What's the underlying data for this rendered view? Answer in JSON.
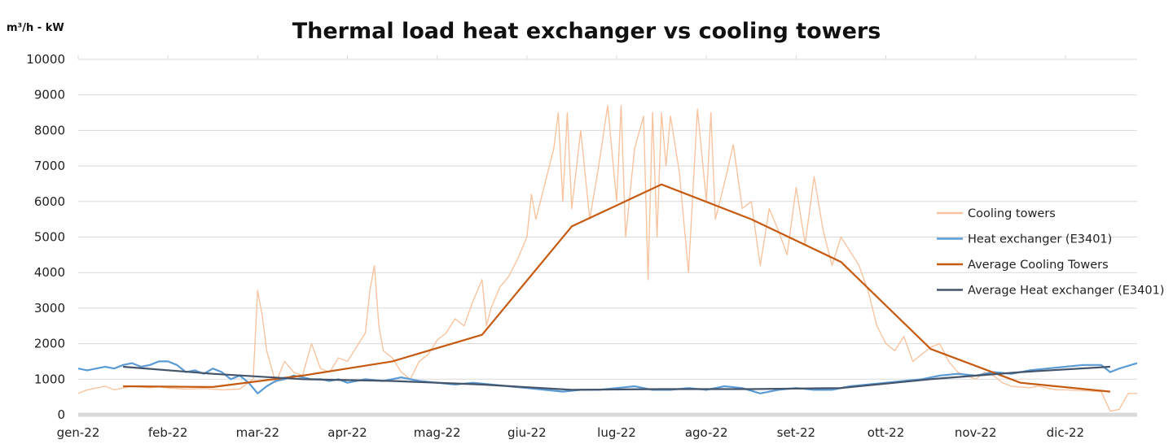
{
  "chart_data": {
    "type": "line",
    "title": "Thermal load heat exchanger vs cooling towers",
    "ylabel": "m³/h - kW",
    "xlabel": "",
    "ylim": [
      0,
      10000
    ],
    "y_ticks": [
      "0",
      "1000",
      "2000",
      "3000",
      "4000",
      "5000",
      "6000",
      "7000",
      "8000",
      "9000",
      "10000"
    ],
    "categories": [
      "gen-22",
      "feb-22",
      "mar-22",
      "apr-22",
      "mag-22",
      "giu-22",
      "lug-22",
      "ago-22",
      "set-22",
      "ott-22",
      "nov-22",
      "dic-22"
    ],
    "grid": "horizontal",
    "legend_position": "right",
    "series": [
      {
        "name": "Cooling towers",
        "color": "#f8c4a0",
        "values": [
          [
            0.0,
            600
          ],
          [
            0.1,
            700
          ],
          [
            0.2,
            750
          ],
          [
            0.3,
            800
          ],
          [
            0.4,
            700
          ],
          [
            0.5,
            750
          ],
          [
            0.6,
            800
          ],
          [
            0.7,
            780
          ],
          [
            0.8,
            760
          ],
          [
            0.9,
            790
          ],
          [
            1.0,
            750
          ],
          [
            1.2,
            720
          ],
          [
            1.4,
            740
          ],
          [
            1.6,
            700
          ],
          [
            1.8,
            720
          ],
          [
            1.95,
            1000
          ],
          [
            2.0,
            3500
          ],
          [
            2.05,
            2800
          ],
          [
            2.1,
            1800
          ],
          [
            2.2,
            900
          ],
          [
            2.3,
            1500
          ],
          [
            2.4,
            1200
          ],
          [
            2.5,
            1100
          ],
          [
            2.6,
            2000
          ],
          [
            2.7,
            1300
          ],
          [
            2.8,
            1200
          ],
          [
            2.9,
            1600
          ],
          [
            3.0,
            1500
          ],
          [
            3.1,
            1900
          ],
          [
            3.2,
            2300
          ],
          [
            3.25,
            3500
          ],
          [
            3.3,
            4200
          ],
          [
            3.35,
            2500
          ],
          [
            3.4,
            1800
          ],
          [
            3.5,
            1600
          ],
          [
            3.6,
            1200
          ],
          [
            3.7,
            1000
          ],
          [
            3.8,
            1500
          ],
          [
            3.9,
            1700
          ],
          [
            4.0,
            2100
          ],
          [
            4.1,
            2300
          ],
          [
            4.2,
            2700
          ],
          [
            4.3,
            2500
          ],
          [
            4.4,
            3200
          ],
          [
            4.5,
            3800
          ],
          [
            4.55,
            2500
          ],
          [
            4.6,
            3000
          ],
          [
            4.7,
            3600
          ],
          [
            4.8,
            3900
          ],
          [
            4.9,
            4400
          ],
          [
            5.0,
            5000
          ],
          [
            5.05,
            6200
          ],
          [
            5.1,
            5500
          ],
          [
            5.2,
            6500
          ],
          [
            5.3,
            7500
          ],
          [
            5.35,
            8500
          ],
          [
            5.4,
            6000
          ],
          [
            5.45,
            8500
          ],
          [
            5.5,
            5800
          ],
          [
            5.6,
            8000
          ],
          [
            5.7,
            5500
          ],
          [
            5.8,
            7000
          ],
          [
            5.9,
            8700
          ],
          [
            6.0,
            6000
          ],
          [
            6.05,
            8700
          ],
          [
            6.1,
            5000
          ],
          [
            6.2,
            7500
          ],
          [
            6.3,
            8400
          ],
          [
            6.35,
            3800
          ],
          [
            6.4,
            8500
          ],
          [
            6.45,
            5000
          ],
          [
            6.5,
            8500
          ],
          [
            6.55,
            7000
          ],
          [
            6.6,
            8400
          ],
          [
            6.7,
            6800
          ],
          [
            6.8,
            4000
          ],
          [
            6.9,
            8600
          ],
          [
            7.0,
            6000
          ],
          [
            7.05,
            8500
          ],
          [
            7.1,
            5500
          ],
          [
            7.2,
            6500
          ],
          [
            7.3,
            7600
          ],
          [
            7.4,
            5800
          ],
          [
            7.5,
            6000
          ],
          [
            7.6,
            4200
          ],
          [
            7.7,
            5800
          ],
          [
            7.8,
            5200
          ],
          [
            7.9,
            4500
          ],
          [
            8.0,
            6400
          ],
          [
            8.1,
            4800
          ],
          [
            8.2,
            6700
          ],
          [
            8.3,
            5200
          ],
          [
            8.4,
            4200
          ],
          [
            8.5,
            5000
          ],
          [
            8.6,
            4600
          ],
          [
            8.7,
            4200
          ],
          [
            8.8,
            3500
          ],
          [
            8.9,
            2500
          ],
          [
            9.0,
            2000
          ],
          [
            9.1,
            1800
          ],
          [
            9.2,
            2200
          ],
          [
            9.3,
            1500
          ],
          [
            9.4,
            1700
          ],
          [
            9.5,
            1900
          ],
          [
            9.6,
            2000
          ],
          [
            9.7,
            1500
          ],
          [
            9.8,
            1200
          ],
          [
            9.9,
            1100
          ],
          [
            10.0,
            1000
          ],
          [
            10.1,
            1200
          ],
          [
            10.2,
            1100
          ],
          [
            10.3,
            900
          ],
          [
            10.4,
            800
          ],
          [
            10.5,
            780
          ],
          [
            10.6,
            760
          ],
          [
            10.7,
            800
          ],
          [
            10.8,
            750
          ],
          [
            10.9,
            700
          ],
          [
            11.0,
            700
          ],
          [
            11.2,
            680
          ],
          [
            11.4,
            650
          ],
          [
            11.5,
            100
          ],
          [
            11.6,
            150
          ],
          [
            11.7,
            600
          ],
          [
            11.8,
            600
          ]
        ]
      },
      {
        "name": "Heat exchanger (E3401)",
        "color": "#5b9bd5",
        "values": [
          [
            0.0,
            1300
          ],
          [
            0.1,
            1250
          ],
          [
            0.2,
            1300
          ],
          [
            0.3,
            1350
          ],
          [
            0.4,
            1300
          ],
          [
            0.5,
            1400
          ],
          [
            0.6,
            1450
          ],
          [
            0.7,
            1350
          ],
          [
            0.8,
            1400
          ],
          [
            0.9,
            1500
          ],
          [
            1.0,
            1500
          ],
          [
            1.1,
            1400
          ],
          [
            1.2,
            1200
          ],
          [
            1.3,
            1250
          ],
          [
            1.4,
            1150
          ],
          [
            1.5,
            1300
          ],
          [
            1.6,
            1200
          ],
          [
            1.7,
            1000
          ],
          [
            1.8,
            1100
          ],
          [
            1.9,
            900
          ],
          [
            2.0,
            600
          ],
          [
            2.1,
            800
          ],
          [
            2.2,
            950
          ],
          [
            2.3,
            1000
          ],
          [
            2.4,
            1100
          ],
          [
            2.5,
            1050
          ],
          [
            2.6,
            1000
          ],
          [
            2.7,
            1000
          ],
          [
            2.8,
            950
          ],
          [
            2.9,
            1000
          ],
          [
            3.0,
            900
          ],
          [
            3.2,
            1000
          ],
          [
            3.4,
            950
          ],
          [
            3.6,
            1050
          ],
          [
            3.8,
            950
          ],
          [
            4.0,
            900
          ],
          [
            4.2,
            850
          ],
          [
            4.4,
            900
          ],
          [
            4.6,
            850
          ],
          [
            4.8,
            800
          ],
          [
            5.0,
            750
          ],
          [
            5.2,
            700
          ],
          [
            5.4,
            650
          ],
          [
            5.6,
            700
          ],
          [
            5.8,
            700
          ],
          [
            6.0,
            750
          ],
          [
            6.2,
            800
          ],
          [
            6.4,
            700
          ],
          [
            6.6,
            700
          ],
          [
            6.8,
            750
          ],
          [
            7.0,
            700
          ],
          [
            7.2,
            800
          ],
          [
            7.4,
            750
          ],
          [
            7.6,
            600
          ],
          [
            7.8,
            700
          ],
          [
            8.0,
            750
          ],
          [
            8.2,
            700
          ],
          [
            8.4,
            700
          ],
          [
            8.6,
            800
          ],
          [
            8.8,
            850
          ],
          [
            9.0,
            900
          ],
          [
            9.2,
            950
          ],
          [
            9.4,
            1000
          ],
          [
            9.6,
            1100
          ],
          [
            9.8,
            1150
          ],
          [
            10.0,
            1100
          ],
          [
            10.2,
            1200
          ],
          [
            10.4,
            1150
          ],
          [
            10.6,
            1250
          ],
          [
            10.8,
            1300
          ],
          [
            11.0,
            1350
          ],
          [
            11.2,
            1400
          ],
          [
            11.4,
            1400
          ],
          [
            11.5,
            1200
          ],
          [
            11.6,
            1300
          ],
          [
            11.8,
            1450
          ]
        ]
      },
      {
        "name": "Average Cooling Towers",
        "color": "#c55a11",
        "values": [
          [
            0.5,
            800
          ],
          [
            1.5,
            780
          ],
          [
            2.5,
            1100
          ],
          [
            3.5,
            1500
          ],
          [
            4.5,
            2250
          ],
          [
            5.5,
            5300
          ],
          [
            6.5,
            6480
          ],
          [
            7.5,
            5500
          ],
          [
            8.5,
            4300
          ],
          [
            9.5,
            1850
          ],
          [
            10.5,
            900
          ],
          [
            11.5,
            650
          ]
        ]
      },
      {
        "name": "Average Heat exchanger (E3401)",
        "color": "#44546a",
        "values": [
          [
            0.5,
            1350
          ],
          [
            1.5,
            1150
          ],
          [
            2.5,
            1000
          ],
          [
            3.5,
            950
          ],
          [
            4.5,
            850
          ],
          [
            5.5,
            700
          ],
          [
            6.5,
            720
          ],
          [
            7.5,
            720
          ],
          [
            8.5,
            750
          ],
          [
            9.5,
            1000
          ],
          [
            10.5,
            1200
          ],
          [
            11.5,
            1350
          ]
        ]
      }
    ]
  }
}
